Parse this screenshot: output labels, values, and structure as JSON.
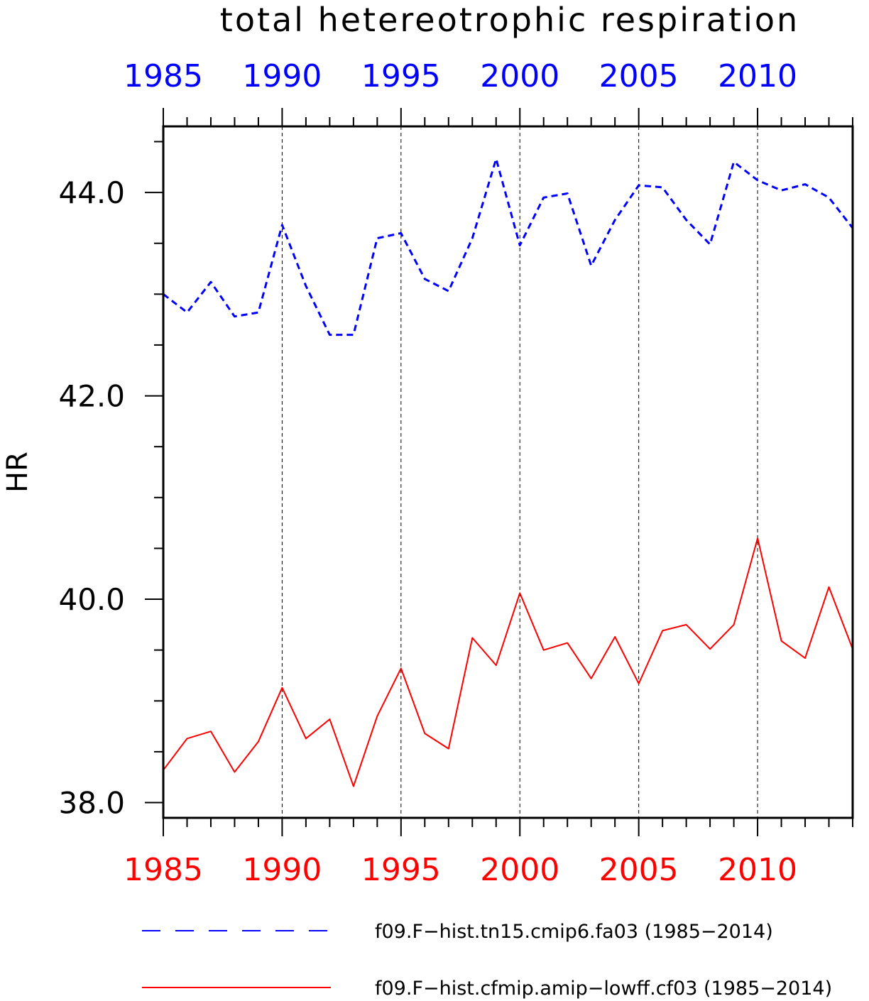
{
  "chart_data": {
    "type": "line",
    "title": "total hetereotrophic respiration",
    "ylabel": "HR",
    "xlim": [
      1985,
      2014
    ],
    "ylim": [
      37.85,
      44.65
    ],
    "yticks": [
      38.0,
      40.0,
      42.0,
      44.0
    ],
    "ytick_labels": [
      "38.0",
      "40.0",
      "42.0",
      "44.0"
    ],
    "xticks": [
      1985,
      1990,
      1995,
      2000,
      2005,
      2010
    ],
    "xtick_labels": [
      "1985",
      "1990",
      "1995",
      "2000",
      "2005",
      "2010"
    ],
    "top_axis_color": "#0000ff",
    "bottom_axis_color": "#ff0000",
    "grid": "vertical dashed at major x ticks",
    "legend_position": "bottom",
    "x": [
      1985,
      1986,
      1987,
      1988,
      1989,
      1990,
      1991,
      1992,
      1993,
      1994,
      1995,
      1996,
      1997,
      1998,
      1999,
      2000,
      2001,
      2002,
      2003,
      2004,
      2005,
      2006,
      2007,
      2008,
      2009,
      2010,
      2011,
      2012,
      2013,
      2014
    ],
    "series": [
      {
        "name": "f09.F−hist.tn15.cmip6.fa03 (1985−2014)",
        "color": "#0000ff",
        "dash": "dashed",
        "values": [
          43.0,
          42.82,
          43.12,
          42.78,
          42.82,
          43.68,
          43.08,
          42.6,
          42.6,
          43.55,
          43.6,
          43.15,
          43.03,
          43.55,
          44.33,
          43.48,
          43.95,
          43.99,
          43.28,
          43.73,
          44.07,
          44.05,
          43.73,
          43.49,
          44.3,
          44.12,
          44.02,
          44.08,
          43.95,
          43.65
        ]
      },
      {
        "name": "f09.F−hist.cfmip.amip−lowff.cf03 (1985−2014)",
        "color": "#ff0000",
        "dash": "solid",
        "values": [
          38.32,
          38.63,
          38.7,
          38.3,
          38.6,
          39.13,
          38.63,
          38.82,
          38.16,
          38.85,
          39.32,
          38.68,
          38.53,
          39.62,
          39.35,
          40.06,
          39.5,
          39.57,
          39.22,
          39.63,
          39.17,
          39.69,
          39.75,
          39.51,
          39.75,
          40.6,
          39.59,
          39.42,
          40.12,
          39.51
        ]
      }
    ]
  }
}
